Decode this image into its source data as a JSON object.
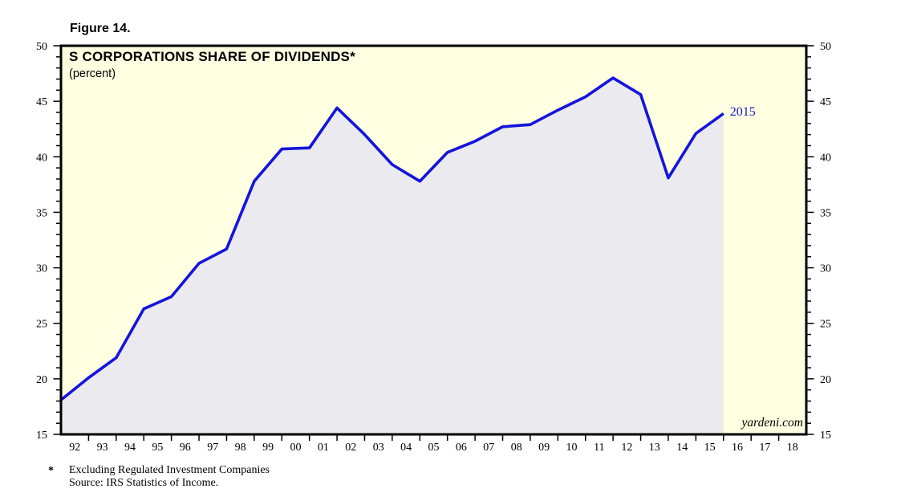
{
  "figure_label": "Figure 14.",
  "chart_data": {
    "type": "area",
    "title": "S CORPORATIONS SHARE OF DIVIDENDS*",
    "subtitle": "(percent)",
    "series": [
      {
        "name": "S corporations share of dividends (percent)",
        "x": [
          1991,
          1992,
          1993,
          1994,
          1995,
          1996,
          1997,
          1998,
          1999,
          2000,
          2001,
          2002,
          2003,
          2004,
          2005,
          2006,
          2007,
          2008,
          2009,
          2010,
          2011,
          2012,
          2013,
          2014,
          2015
        ],
        "values": [
          18.1,
          20.1,
          21.9,
          26.3,
          27.4,
          30.4,
          31.7,
          37.8,
          40.7,
          40.8,
          44.4,
          42.0,
          39.3,
          37.8,
          40.4,
          41.4,
          42.7,
          42.9,
          44.2,
          45.4,
          47.1,
          45.6,
          38.1,
          42.1,
          43.9
        ]
      }
    ],
    "end_label": "2015",
    "x_axis": {
      "range": [
        1991,
        2018
      ],
      "tick_labels": [
        "92",
        "93",
        "94",
        "95",
        "96",
        "97",
        "98",
        "99",
        "00",
        "01",
        "02",
        "03",
        "04",
        "05",
        "06",
        "07",
        "08",
        "09",
        "10",
        "11",
        "12",
        "13",
        "14",
        "15",
        "16",
        "17",
        "18"
      ]
    },
    "y_axis": {
      "range": [
        15,
        50
      ],
      "major_step": 5,
      "minor_step": 1,
      "major_labels": [
        "50",
        "45",
        "40",
        "35",
        "30",
        "25",
        "20",
        "15"
      ],
      "labels_both_sides": true
    },
    "grid": "off",
    "legend": "none",
    "watermark": "yardeni.com",
    "footnote": {
      "marker": "*",
      "line1": "Excluding Regulated Investment Companies",
      "line2": "Source: IRS Statistics of Income."
    },
    "colors": {
      "plot_bg": "#ffffe1",
      "area_fill": "#eaeaef",
      "line": "#1414dc",
      "end_label": "#1a1acd",
      "frame": "#000000"
    }
  }
}
